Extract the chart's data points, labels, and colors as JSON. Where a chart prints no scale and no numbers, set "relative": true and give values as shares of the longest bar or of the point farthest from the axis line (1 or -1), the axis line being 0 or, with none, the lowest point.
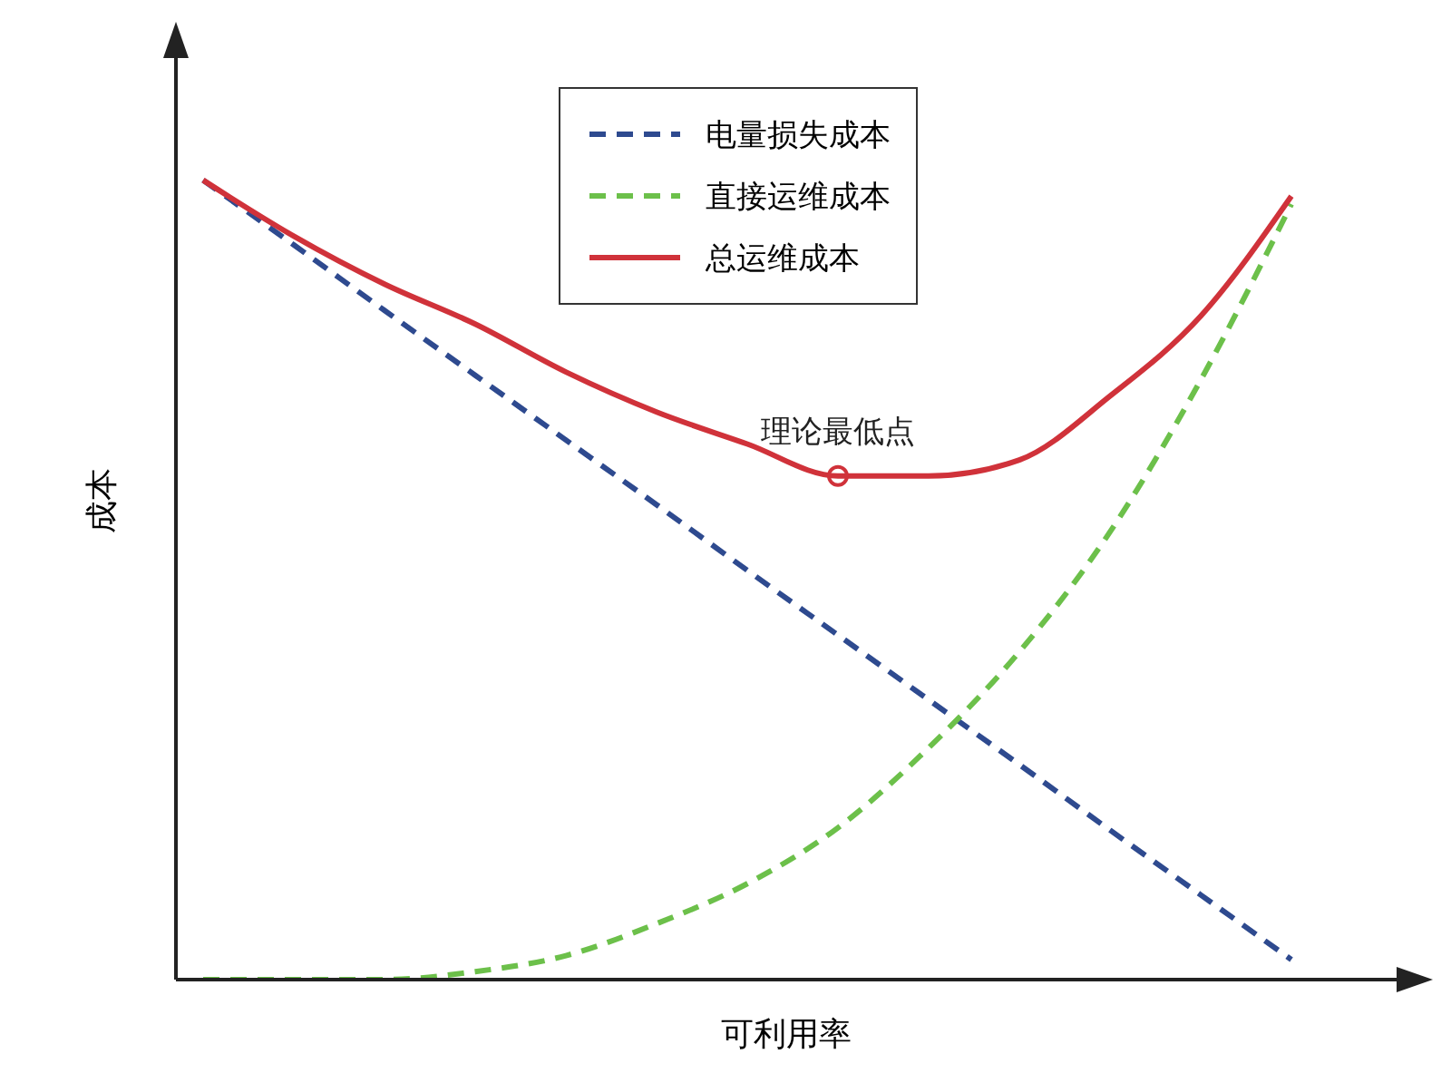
{
  "chart_data": {
    "type": "line",
    "relative": true,
    "xlabel": "可利用率",
    "ylabel": "成本",
    "legend": "top",
    "marker": "none",
    "categories": [
      null,
      null,
      null,
      null,
      null,
      null,
      null,
      null,
      null,
      null,
      null,
      null,
      null
    ],
    "series": [
      {
        "name": "电量损失成本",
        "color": "#2e4a8f",
        "line_style": "dashed",
        "values": [
          1.0,
          0.919,
          0.837,
          0.756,
          0.675,
          0.594,
          0.512,
          0.431,
          0.35,
          0.269,
          0.187,
          0.106,
          0.025
        ]
      },
      {
        "name": "直接运维成本",
        "color": "#6cc04a",
        "line_style": "dashed",
        "values": [
          0,
          0,
          0,
          0.01,
          0.03,
          0.07,
          0.12,
          0.19,
          0.29,
          0.41,
          0.56,
          0.75,
          0.97
        ]
      },
      {
        "name": "总运维成本",
        "color": "#d0323a",
        "line_style": "solid",
        "values": [
          1.0,
          0.93,
          0.87,
          0.82,
          0.76,
          0.71,
          0.67,
          0.63,
          0.63,
          0.65,
          0.73,
          0.83,
          0.98
        ]
      }
    ],
    "annotations": [
      {
        "text": "理论最低点",
        "y": 0.63
      }
    ]
  }
}
